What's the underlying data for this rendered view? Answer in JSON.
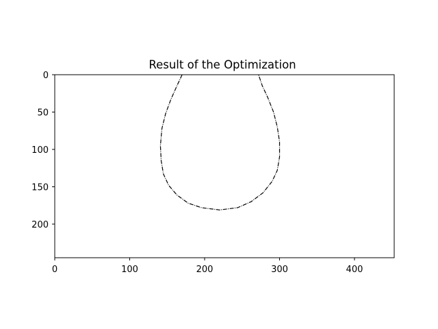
{
  "chart_data": {
    "type": "image",
    "title": "Result of the Optimization",
    "xlabel": "",
    "ylabel": "",
    "xlim": [
      0,
      453
    ],
    "ylim": [
      245,
      0
    ],
    "y_axis_inverted": true,
    "grid": false,
    "x_ticks": [
      0,
      100,
      200,
      300,
      400
    ],
    "y_ticks": [
      0,
      50,
      100,
      150,
      200
    ],
    "x_tick_labels": [
      "0",
      "100",
      "200",
      "300",
      "400"
    ],
    "y_tick_labels": [
      "0",
      "50",
      "100",
      "150",
      "200"
    ],
    "background_color": "#ffffff",
    "curve_color": "#000000",
    "curve": {
      "description_shape": "drop",
      "points": [
        [
          170,
          0
        ],
        [
          163,
          15
        ],
        [
          155,
          33
        ],
        [
          148,
          52
        ],
        [
          143,
          72
        ],
        [
          141,
          95
        ],
        [
          142,
          115
        ],
        [
          145,
          133
        ],
        [
          152,
          148
        ],
        [
          163,
          161
        ],
        [
          178,
          172
        ],
        [
          196,
          178
        ],
        [
          220,
          181
        ],
        [
          244,
          178
        ],
        [
          262,
          170
        ],
        [
          278,
          158
        ],
        [
          290,
          143
        ],
        [
          297,
          128
        ],
        [
          300,
          110
        ],
        [
          300,
          90
        ],
        [
          297,
          70
        ],
        [
          292,
          50
        ],
        [
          284,
          30
        ],
        [
          277,
          15
        ],
        [
          272,
          0
        ]
      ]
    }
  }
}
